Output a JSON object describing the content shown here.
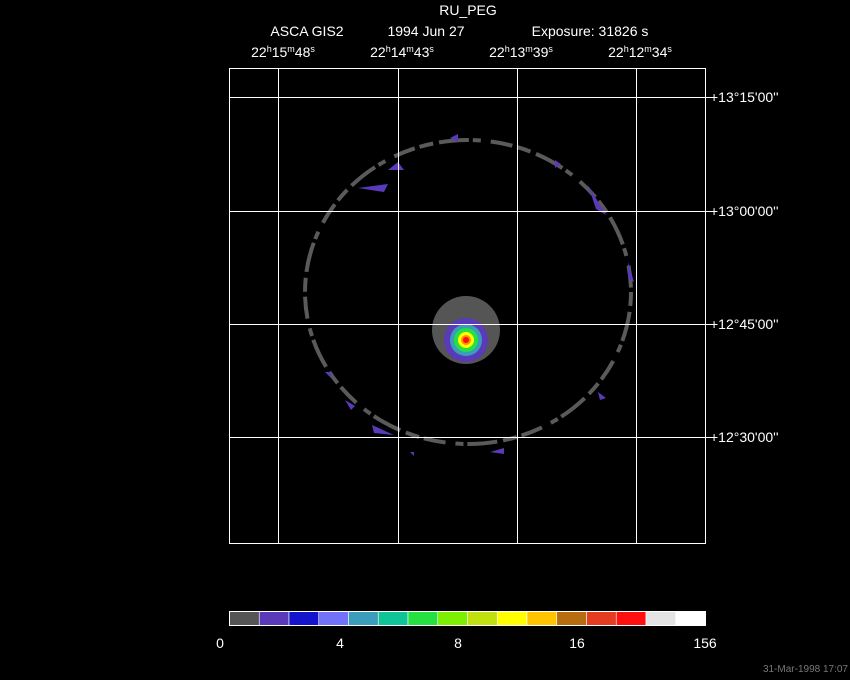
{
  "title": "RU_PEG",
  "subtitle": {
    "instrument": "ASCA GIS2",
    "date": "1994 Jun 27",
    "exposure": "Exposure: 31826 s"
  },
  "ra_labels": [
    [
      "22",
      "h",
      "15",
      "m",
      "48",
      "s"
    ],
    [
      "22",
      "h",
      "14",
      "m",
      "43",
      "s"
    ],
    [
      "22",
      "h",
      "13",
      "m",
      "39",
      "s"
    ],
    [
      "22",
      "h",
      "12",
      "m",
      "34",
      "s"
    ]
  ],
  "dec_labels": [
    "+13°15'00''",
    "+13°00'00''",
    "+12°45'00''",
    "+12°30'00''"
  ],
  "colorbar": {
    "colors": [
      "#555555",
      "#5a3ab8",
      "#1414cc",
      "#7272f8",
      "#3c9cbc",
      "#10c498",
      "#24e040",
      "#7cf000",
      "#c0e010",
      "#ffff00",
      "#ffc400",
      "#b86c10",
      "#e43c20",
      "#ff1010",
      "#e4e4e4",
      "#ffffff"
    ],
    "labels": [
      "0",
      "4",
      "8",
      "16",
      "156"
    ]
  },
  "timestamp": "31-Mar-1998 17:07"
}
